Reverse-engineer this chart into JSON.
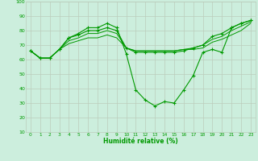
{
  "xlabel": "Humidité relative (%)",
  "xlim": [
    -0.5,
    23.5
  ],
  "ylim": [
    10,
    100
  ],
  "yticks": [
    10,
    20,
    30,
    40,
    50,
    60,
    70,
    80,
    90,
    100
  ],
  "xticks": [
    0,
    1,
    2,
    3,
    4,
    5,
    6,
    7,
    8,
    9,
    10,
    11,
    12,
    13,
    14,
    15,
    16,
    17,
    18,
    19,
    20,
    21,
    22,
    23
  ],
  "background_color": "#cceedd",
  "grid_color": "#bbccbb",
  "line_color": "#009900",
  "lines": [
    [
      66,
      61,
      61,
      67,
      75,
      78,
      82,
      82,
      85,
      82,
      64,
      39,
      32,
      28,
      31,
      30,
      39,
      49,
      65,
      67,
      65,
      82,
      85,
      87
    ],
    [
      66,
      61,
      61,
      67,
      75,
      77,
      80,
      80,
      82,
      80,
      68,
      65,
      65,
      65,
      65,
      65,
      66,
      68,
      70,
      76,
      78,
      82,
      85,
      87
    ],
    [
      66,
      61,
      61,
      67,
      73,
      75,
      78,
      78,
      80,
      78,
      68,
      66,
      66,
      66,
      66,
      66,
      67,
      68,
      70,
      74,
      76,
      80,
      83,
      86
    ],
    [
      66,
      61,
      61,
      67,
      71,
      73,
      75,
      75,
      77,
      75,
      68,
      66,
      66,
      66,
      66,
      66,
      67,
      67,
      68,
      72,
      74,
      77,
      80,
      85
    ]
  ],
  "markers": [
    true,
    true,
    false,
    false
  ],
  "marker_only_indices": [
    [
      0,
      1,
      2,
      3,
      4,
      5,
      6,
      7,
      8,
      9,
      10,
      11,
      12,
      13,
      14,
      15,
      16,
      17,
      18,
      19,
      20,
      21,
      22,
      23
    ],
    [
      0,
      3,
      4,
      5,
      6,
      7,
      8,
      9,
      10,
      15,
      16,
      17,
      18,
      19,
      20,
      21,
      22,
      23
    ],
    [],
    []
  ]
}
